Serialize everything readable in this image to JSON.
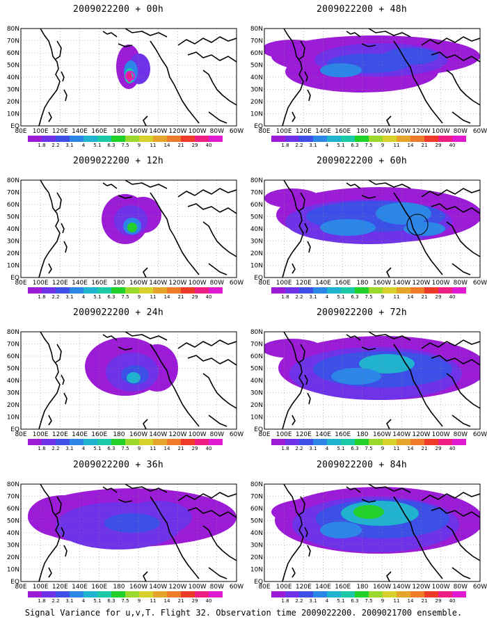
{
  "figure": {
    "footer": "Signal Variance for u,v,T. Flight 32. Observation time 2009022200. 2009021700 ensemble."
  },
  "map": {
    "lat_labels": [
      "80N",
      "70N",
      "60N",
      "50N",
      "40N",
      "30N",
      "20N",
      "10N",
      "EQ"
    ],
    "lon_labels": [
      "80E",
      "100E",
      "120E",
      "140E",
      "160E",
      "180",
      "160W",
      "140W",
      "120W",
      "100W",
      "80W",
      "60W"
    ]
  },
  "colorbar": {
    "labels": [
      "1.8",
      "2.2",
      "3.1",
      "4",
      "5.1",
      "6.3",
      "7.5",
      "9",
      "11",
      "14",
      "21",
      "29",
      "40"
    ],
    "colors": [
      "#9b1bd6",
      "#6e33e8",
      "#3c4fe6",
      "#2b86e8",
      "#1fb3d0",
      "#1cc9a6",
      "#22d02a",
      "#9ad82c",
      "#d7d22a",
      "#e6a52a",
      "#ee7a2a",
      "#ef3a2a",
      "#ee1e82",
      "#e01ad0"
    ]
  },
  "panels": [
    {
      "title": "2009022200 + 00h"
    },
    {
      "title": "2009022200 + 48h"
    },
    {
      "title": "2009022200 + 12h"
    },
    {
      "title": "2009022200 + 60h"
    },
    {
      "title": "2009022200 + 24h"
    },
    {
      "title": "2009022200 + 72h"
    },
    {
      "title": "2009022200 + 36h"
    },
    {
      "title": "2009022200 + 84h"
    }
  ]
}
